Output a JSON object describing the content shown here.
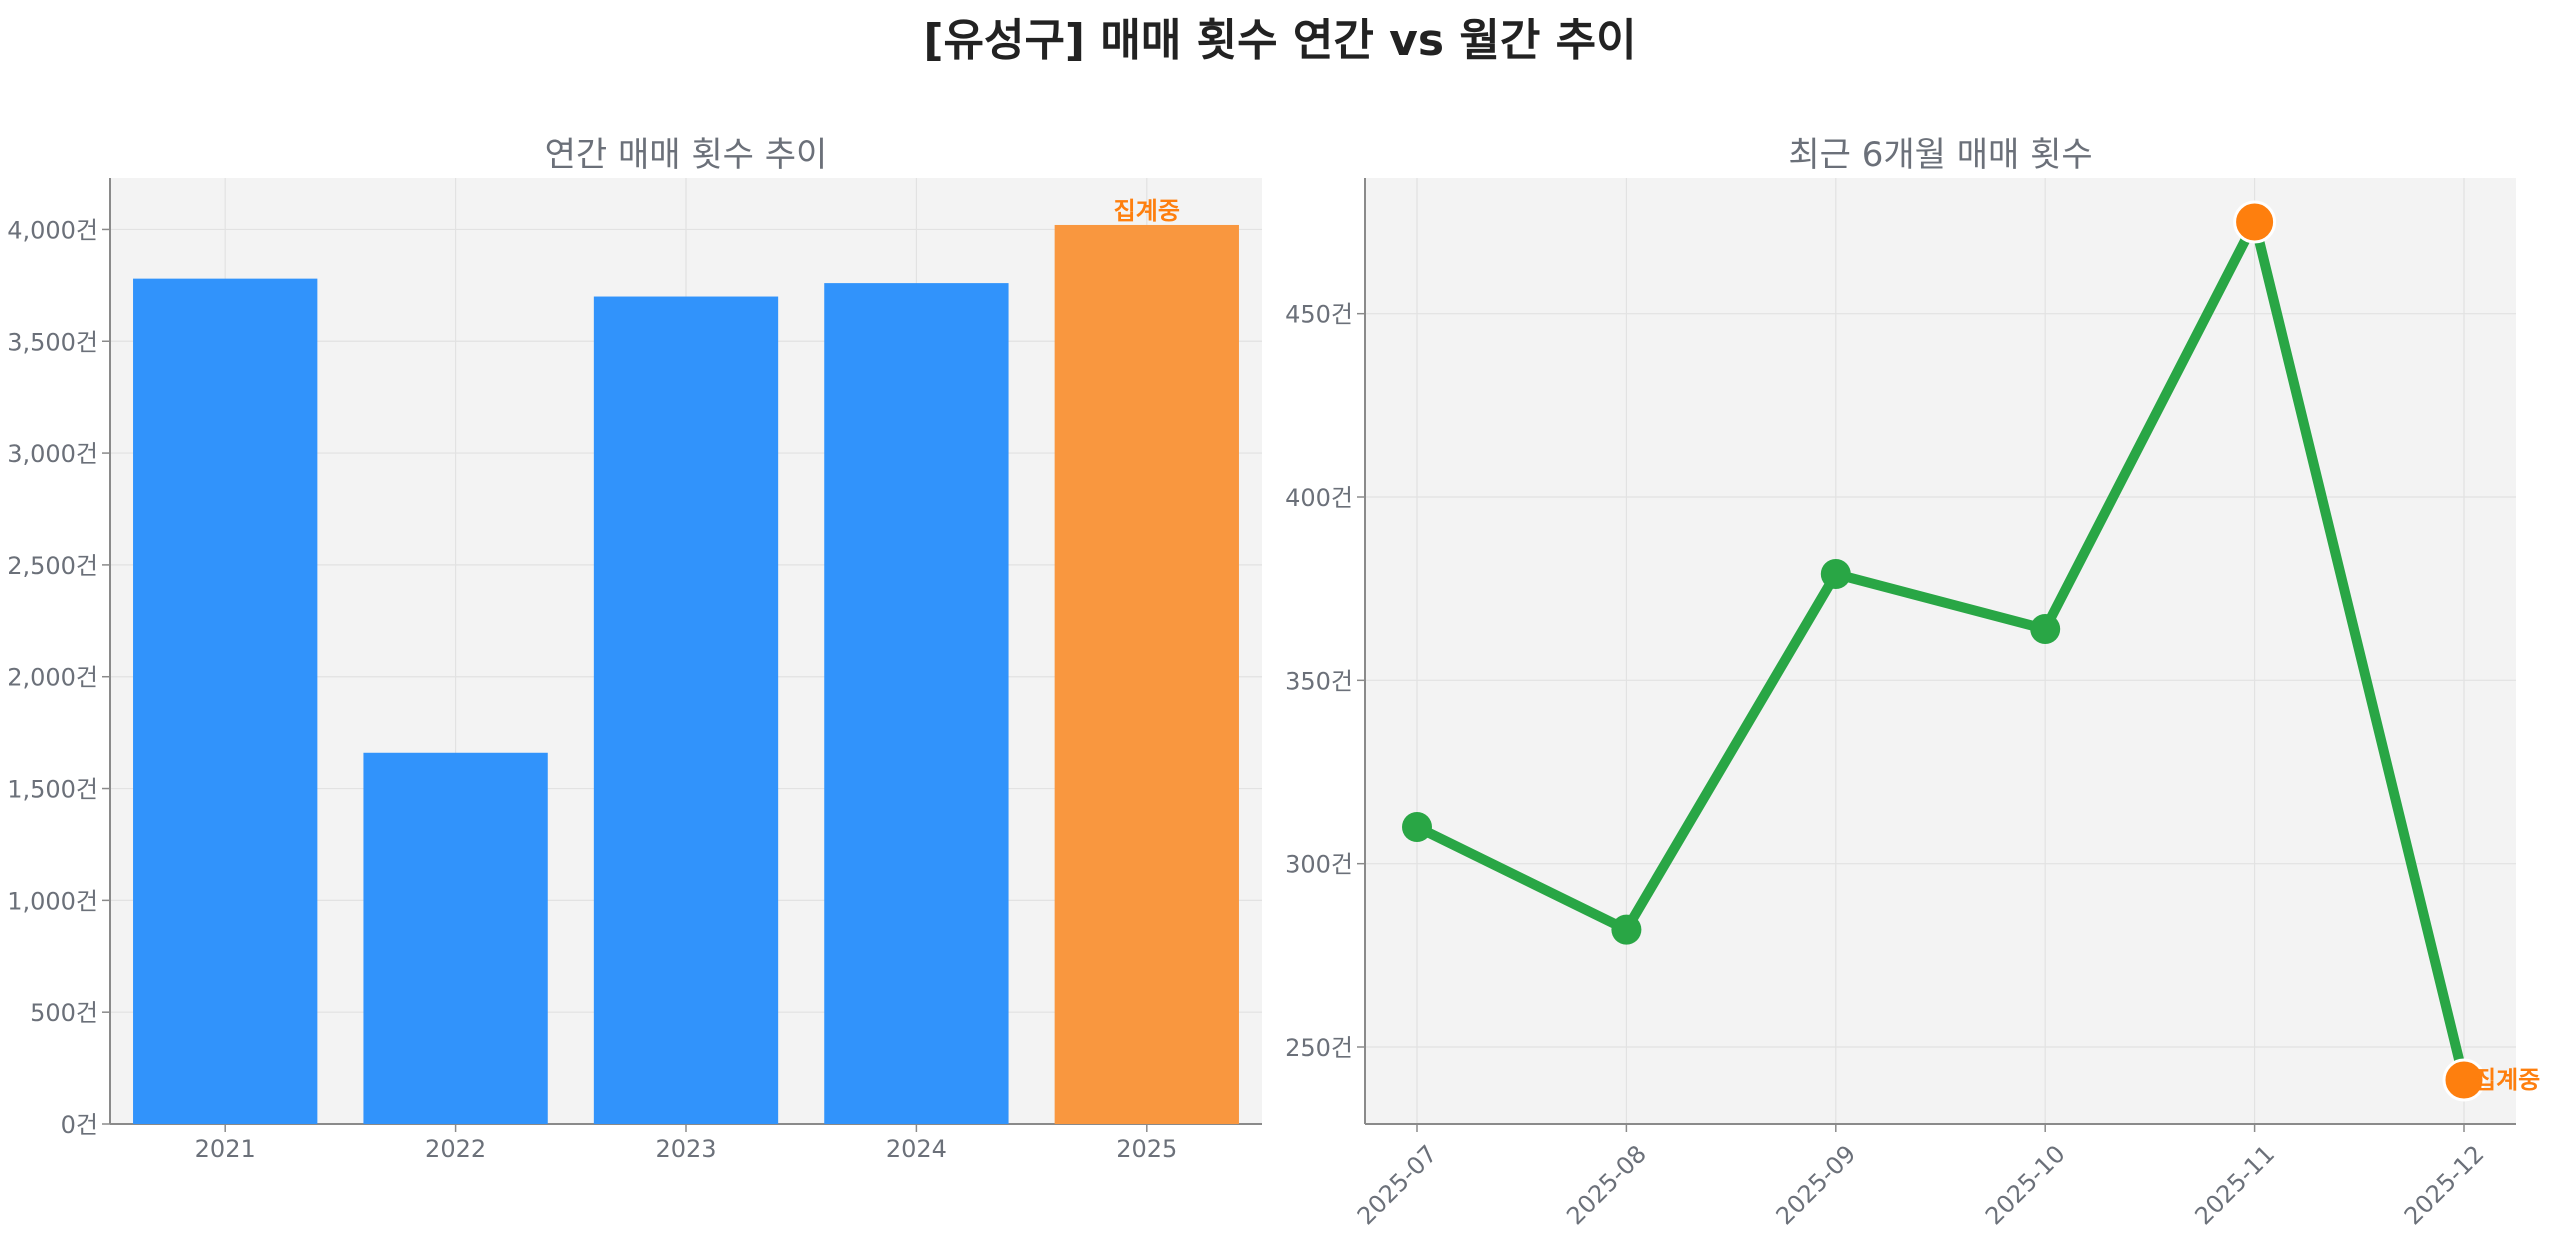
{
  "suptitle": "[유성구] 매매 횟수 연간 vs 월간 추이",
  "colors": {
    "bar": "#3193fb",
    "bar_pending": "#f9973f",
    "line": "#29a645",
    "marker_pending": "#fe7f0e",
    "pending_label": "#fe7f0e",
    "panel_bg": "#f3f3f3",
    "text": "#6b7079"
  },
  "chart_data": [
    {
      "type": "bar",
      "title": "연간 매매 횟수 추이",
      "categories": [
        "2021",
        "2022",
        "2023",
        "2024",
        "2025"
      ],
      "values": [
        3780,
        1660,
        3700,
        3760,
        4020
      ],
      "pending_index": 4,
      "pending_label": "집계중",
      "ylim": [
        0,
        4230
      ],
      "yticks": [
        0,
        500,
        1000,
        1500,
        2000,
        2500,
        3000,
        3500,
        4000
      ],
      "ytick_labels": [
        "0건",
        "500건",
        "1,000건",
        "1,500건",
        "2,000건",
        "2,500건",
        "3,000건",
        "3,500건",
        "4,000건"
      ],
      "grid": true
    },
    {
      "type": "line",
      "title": "최근 6개월 매매 횟수",
      "categories": [
        "2025-07",
        "2025-08",
        "2025-09",
        "2025-10",
        "2025-11",
        "2025-12"
      ],
      "values": [
        310,
        282,
        379,
        364,
        475,
        241
      ],
      "highlight_indices": [
        4,
        5
      ],
      "pending_index": 5,
      "pending_label": "집계중",
      "ylim": [
        229,
        487
      ],
      "yticks": [
        250,
        300,
        350,
        400,
        450
      ],
      "ytick_labels": [
        "250건",
        "300건",
        "350건",
        "400건",
        "450건"
      ],
      "grid": true
    }
  ]
}
